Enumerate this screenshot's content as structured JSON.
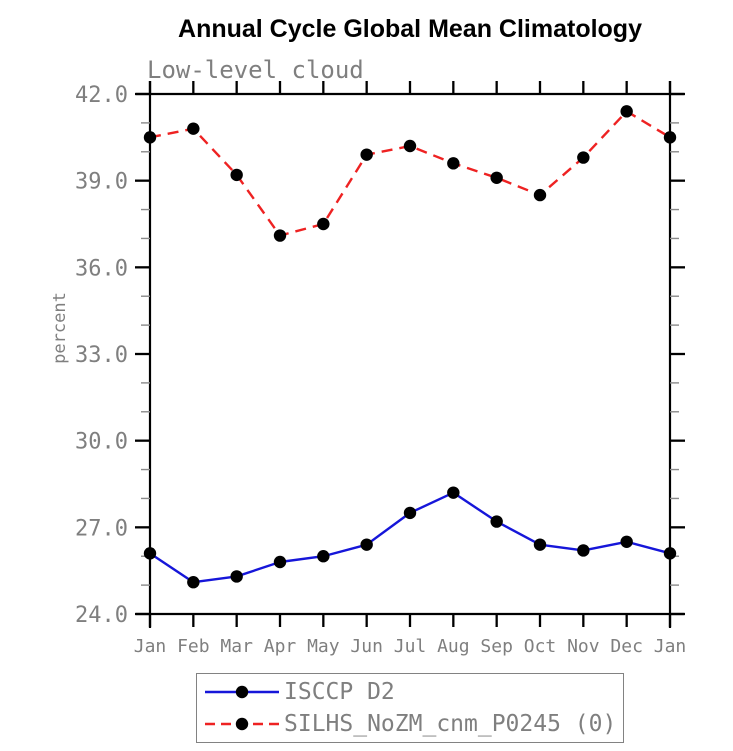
{
  "chart_data": {
    "type": "line",
    "title": "Annual Cycle Global Mean Climatology",
    "subtitle": "Low-level cloud",
    "ylabel": "percent",
    "xlabel": "",
    "categories": [
      "Jan",
      "Feb",
      "Mar",
      "Apr",
      "May",
      "Jun",
      "Jul",
      "Aug",
      "Sep",
      "Oct",
      "Nov",
      "Dec",
      "Jan"
    ],
    "series": [
      {
        "name": "ISCCP D2",
        "color": "#1616d9",
        "line_style": "solid",
        "marker": "filled-circle",
        "marker_color": "#000000",
        "values": [
          26.1,
          25.1,
          25.3,
          25.8,
          26.0,
          26.4,
          27.5,
          28.2,
          27.2,
          26.4,
          26.2,
          26.5,
          26.1
        ]
      },
      {
        "name": "SILHS_NoZM_cnm_P0245 (0)",
        "color": "#ee2222",
        "line_style": "dashed",
        "marker": "filled-circle",
        "marker_color": "#000000",
        "values": [
          40.5,
          40.8,
          39.2,
          37.1,
          37.5,
          39.9,
          40.2,
          39.6,
          39.1,
          38.5,
          39.8,
          41.4,
          40.5
        ]
      }
    ],
    "ylim": [
      24.0,
      42.0
    ],
    "yticks": [
      24.0,
      27.0,
      30.0,
      33.0,
      36.0,
      39.0,
      42.0
    ],
    "ytick_labels": [
      "24.0",
      "27.0",
      "30.0",
      "33.0",
      "36.0",
      "39.0",
      "42.0"
    ],
    "y_minor_tick_interval": 1.0,
    "grid": false,
    "legend_position": "bottom",
    "frame_color": "#000000",
    "minor_tick_color": "#8a8a8a",
    "text_color": "#7f7f7f"
  }
}
